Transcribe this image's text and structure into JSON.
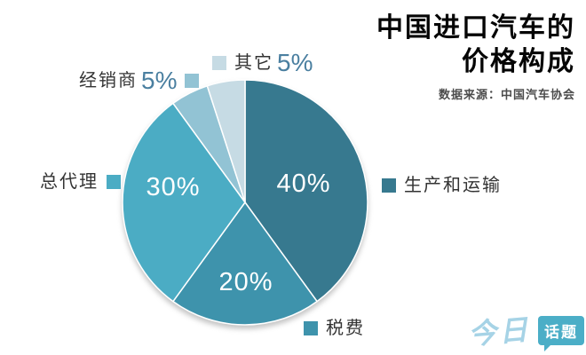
{
  "header": {
    "title_line1": "中国进口汽车的",
    "title_line2": "价格构成",
    "source": "数据来源：中国汽车协会"
  },
  "chart_data": {
    "type": "pie",
    "title": "中国进口汽车的价格构成",
    "source": "中国汽车协会",
    "start_angle_deg": 0,
    "direction": "clockwise",
    "legend_position": "callouts-around-pie",
    "slices": [
      {
        "label": "生产和运输",
        "value": 40,
        "pct_label": "40%",
        "color": "#37798f",
        "label_inside": true,
        "label_xy": [
          342,
          206
        ]
      },
      {
        "label": "税费",
        "value": 20,
        "pct_label": "20%",
        "color": "#3e93ac",
        "label_inside": true,
        "label_xy": [
          277,
          317
        ]
      },
      {
        "label": "总代理",
        "value": 30,
        "pct_label": "30%",
        "color": "#4bacc4",
        "label_inside": true,
        "label_xy": [
          195,
          210
        ]
      },
      {
        "label": "经销商",
        "value": 5,
        "pct_label": "5%",
        "color": "#92c3d4",
        "label_inside": false,
        "label_xy": null
      },
      {
        "label": "其它",
        "value": 5,
        "pct_label": "5%",
        "color": "#c6dbe4",
        "label_inside": false,
        "label_xy": null
      }
    ]
  },
  "logo": {
    "part1": "今日",
    "part2": "话题",
    "accent_color": "#a6d3e6",
    "badge_color": "#4baec7"
  }
}
